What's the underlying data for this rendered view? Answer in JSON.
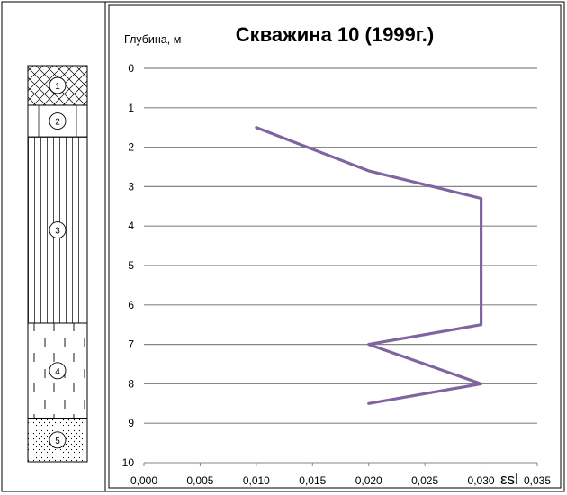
{
  "chart_data": {
    "type": "line",
    "title": "Скважина 10 (1999г.)",
    "ylabel": "Глубина, м",
    "xlabel": "εsl",
    "x_ticks": [
      "0,000",
      "0,005",
      "0,010",
      "0,015",
      "0,020",
      "0,025",
      "0,030",
      "0,035"
    ],
    "y_ticks": [
      "0",
      "1",
      "2",
      "3",
      "4",
      "5",
      "6",
      "7",
      "8",
      "9",
      "10"
    ],
    "xlim": [
      0,
      0.035
    ],
    "ylim": [
      0,
      10
    ],
    "y_inverted": true,
    "grid": true,
    "line_color": "#8064a2",
    "series": [
      {
        "points": [
          {
            "x": 0.01,
            "y": 1.5
          },
          {
            "x": 0.02,
            "y": 2.6
          },
          {
            "x": 0.03,
            "y": 3.3
          },
          {
            "x": 0.03,
            "y": 6.5
          },
          {
            "x": 0.02,
            "y": 7.0
          },
          {
            "x": 0.03,
            "y": 8.0
          },
          {
            "x": 0.02,
            "y": 8.5
          }
        ]
      }
    ]
  },
  "soil_column": {
    "layers": [
      {
        "label": "1",
        "pattern": "crosshatch",
        "top": 0.0,
        "bottom": 1.0
      },
      {
        "label": "2",
        "pattern": "blank",
        "top": 1.0,
        "bottom": 1.8
      },
      {
        "label": "3",
        "pattern": "vertical-lines",
        "top": 1.8,
        "bottom": 6.5
      },
      {
        "label": "4",
        "pattern": "dashed",
        "top": 6.5,
        "bottom": 8.9
      },
      {
        "label": "5",
        "pattern": "dotted",
        "top": 8.9,
        "bottom": 10.0
      }
    ]
  }
}
